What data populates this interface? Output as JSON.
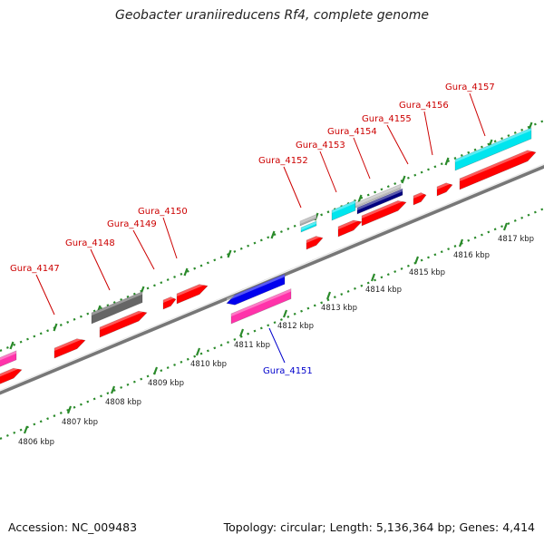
{
  "title": "Geobacter uraniireducens Rf4, complete genome",
  "footer": {
    "accession": "Accession: NC_009483",
    "summary": "Topology: circular; Length: 5,136,364 bp; Genes: 4,414"
  },
  "colors": {
    "cds": "#ff0000",
    "backbone": "#888888",
    "tick": "#2a8a2a",
    "forward_label": "#cc0000",
    "reverse_label": "#0000cc",
    "grey_feature": "#666666",
    "cyan_feature": "#00e5ee",
    "navy_feature": "#000080",
    "blue_feature": "#0000ee",
    "magenta_feature": "#ff33aa"
  },
  "genes": [
    {
      "label": "Gura_4147",
      "strand": "forward"
    },
    {
      "label": "Gura_4148",
      "strand": "forward"
    },
    {
      "label": "Gura_4149",
      "strand": "forward"
    },
    {
      "label": "Gura_4150",
      "strand": "forward"
    },
    {
      "label": "Gura_4151",
      "strand": "reverse"
    },
    {
      "label": "Gura_4152",
      "strand": "forward"
    },
    {
      "label": "Gura_4153",
      "strand": "forward"
    },
    {
      "label": "Gura_4154",
      "strand": "forward"
    },
    {
      "label": "Gura_4155",
      "strand": "forward"
    },
    {
      "label": "Gura_4156",
      "strand": "forward"
    },
    {
      "label": "Gura_4157",
      "strand": "forward"
    }
  ],
  "scale": {
    "labels": [
      "4806 kbp",
      "4807 kbp",
      "4808 kbp",
      "4809 kbp",
      "4810 kbp",
      "4811 kbp",
      "4812 kbp",
      "4813 kbp",
      "4814 kbp",
      "4815 kbp",
      "4816 kbp",
      "4817 kbp"
    ]
  }
}
